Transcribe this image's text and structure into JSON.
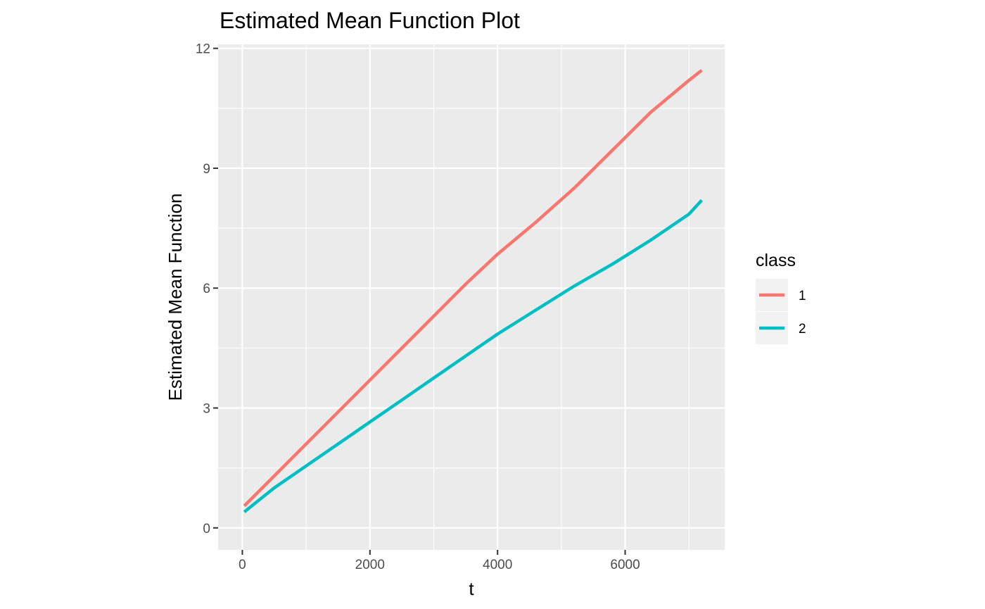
{
  "chart_data": {
    "type": "line",
    "title": "Estimated Mean Function Plot",
    "xlabel": "t",
    "ylabel": "Estimated Mean Function",
    "xlim": [
      -380,
      7560
    ],
    "ylim": [
      -0.55,
      12.1
    ],
    "x_ticks": [
      0,
      2000,
      4000,
      6000
    ],
    "x_tick_labels": [
      "0",
      "2000",
      "4000",
      "6000"
    ],
    "x_minor": [
      1000,
      3000,
      5000,
      7000
    ],
    "y_ticks": [
      0,
      3,
      6,
      9,
      12
    ],
    "y_tick_labels": [
      "0",
      "3",
      "6",
      "9",
      "12"
    ],
    "y_minor": [
      1.5,
      4.5,
      7.5,
      10.5
    ],
    "grid": true,
    "legend": {
      "title": "class",
      "position": "right"
    },
    "series": [
      {
        "name": "1",
        "color": "#F8766D",
        "x": [
          30,
          500,
          1000,
          1500,
          2000,
          2500,
          3000,
          3500,
          4000,
          4600,
          5200,
          5800,
          6400,
          7000,
          7200
        ],
        "y": [
          0.55,
          1.3,
          2.1,
          2.9,
          3.7,
          4.5,
          5.3,
          6.1,
          6.85,
          7.65,
          8.5,
          9.45,
          10.4,
          11.2,
          11.45
        ]
      },
      {
        "name": "2",
        "color": "#00BFC4",
        "x": [
          30,
          500,
          1000,
          1500,
          2000,
          2500,
          3000,
          3500,
          4000,
          4600,
          5200,
          5800,
          6400,
          7000,
          7200
        ],
        "y": [
          0.4,
          1.0,
          1.55,
          2.1,
          2.65,
          3.2,
          3.75,
          4.3,
          4.85,
          5.45,
          6.05,
          6.6,
          7.2,
          7.85,
          8.2
        ]
      }
    ]
  }
}
